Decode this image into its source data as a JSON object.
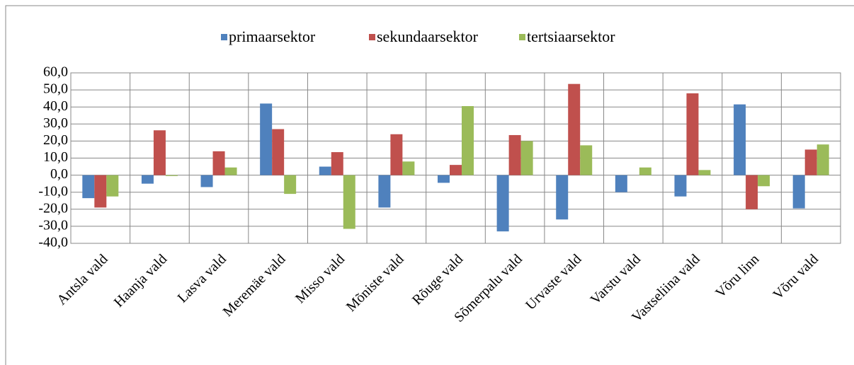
{
  "chart_data": {
    "type": "bar",
    "categories": [
      "Antsla vald",
      "Haanja vald",
      "Lasva vald",
      "Meremäe vald",
      "Misso vald",
      "Mõniste vald",
      "Rõuge vald",
      "Sõmerpalu vald",
      "Urvaste vald",
      "Varstu vald",
      "Vastseliina vald",
      "Võru linn",
      "Võru vald"
    ],
    "series": [
      {
        "name": "primaarsektor",
        "color": "#4f81bd",
        "values": [
          -13.5,
          -5,
          -7,
          42,
          5,
          -19,
          -4.5,
          -33,
          -26,
          -10,
          -12.5,
          41.5,
          -19.5
        ]
      },
      {
        "name": "sekundaarsektor",
        "color": "#c0504d",
        "values": [
          -19,
          26.3,
          14,
          27,
          13.5,
          24,
          6,
          23.5,
          53.5,
          0,
          48,
          -20,
          15
        ]
      },
      {
        "name": "tertsiaarsektor",
        "color": "#9bbb59",
        "values": [
          -12.5,
          -0.5,
          4.5,
          -11,
          -31.5,
          8,
          40.5,
          20,
          17.5,
          4.5,
          3,
          -6.5,
          18
        ]
      }
    ],
    "ylim": [
      -40,
      60
    ],
    "yticks": [
      {
        "value": -40,
        "label": "-40,0"
      },
      {
        "value": -30,
        "label": "-30,0"
      },
      {
        "value": -20,
        "label": "-20,0"
      },
      {
        "value": -10,
        "label": "-10,0"
      },
      {
        "value": 0,
        "label": "0,0"
      },
      {
        "value": 10,
        "label": "10,0"
      },
      {
        "value": 20,
        "label": "20,0"
      },
      {
        "value": 30,
        "label": "30,0"
      },
      {
        "value": 40,
        "label": "40,0"
      },
      {
        "value": 50,
        "label": "50,0"
      },
      {
        "value": 60,
        "label": "60,0"
      }
    ],
    "grid": true,
    "legend": "top"
  }
}
